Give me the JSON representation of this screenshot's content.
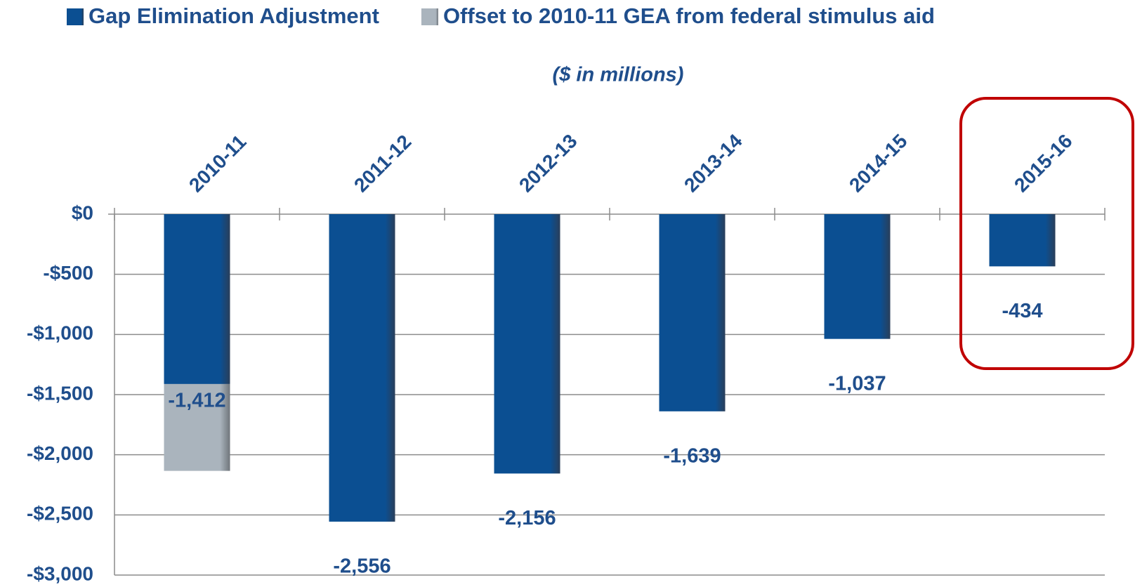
{
  "chart_data": {
    "type": "bar",
    "stacked": true,
    "subtitle": "($ in millions)",
    "categories": [
      "2010-11",
      "2011-12",
      "2012-13",
      "2013-14",
      "2014-15",
      "2015-16"
    ],
    "series": [
      {
        "name": "Gap Elimination Adjustment",
        "color": "#0b4f92",
        "values": [
          -1412,
          -2556,
          -2156,
          -1639,
          -1037,
          -434
        ],
        "value_labels": [
          "-1,412",
          "-2,556",
          "-2,156",
          "-1,639",
          "-1,037",
          "-434"
        ]
      },
      {
        "name": "Offset to 2010-11 GEA from federal stimulus aid",
        "color": "#aab4bd",
        "values": [
          -722,
          null,
          null,
          null,
          null,
          null
        ]
      }
    ],
    "ylim": [
      -3000,
      0
    ],
    "yticks": [
      {
        "value": 0,
        "label": "$0"
      },
      {
        "value": -500,
        "label": "-$500"
      },
      {
        "value": -1000,
        "label": "-$1,000"
      },
      {
        "value": -1500,
        "label": "-$1,500"
      },
      {
        "value": -2000,
        "label": "-$2,000"
      },
      {
        "value": -2500,
        "label": "-$2,500"
      },
      {
        "value": -3000,
        "label": "-$3,000"
      }
    ],
    "grid": true,
    "legend": "top"
  }
}
